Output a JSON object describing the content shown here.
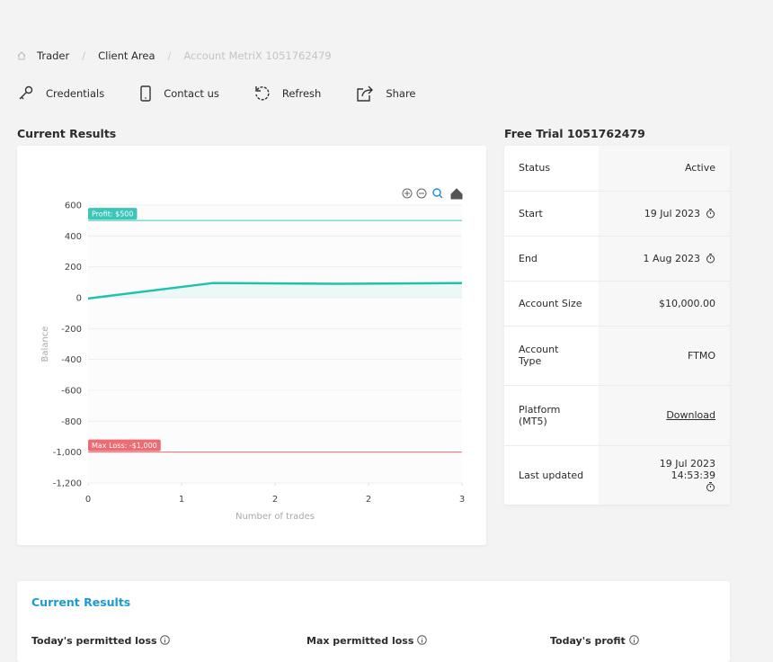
{
  "breadcrumb": [
    "Trader",
    "Client Area",
    "Account MetriX 1051762479"
  ],
  "toolbar": [
    "Credentials",
    "Contact us",
    "Refresh",
    "Share"
  ],
  "results_title": "Current Results",
  "chart_data": {
    "type": "line",
    "x_label": "Number of trades",
    "y_label": "Balance",
    "x": [
      0,
      1,
      2,
      3
    ],
    "series": [
      {
        "name": "Balance",
        "color": "#1fc2ae",
        "values": [
          -5,
          95,
          90,
          95
        ]
      }
    ],
    "xlim": [
      0,
      3
    ],
    "xticks": [
      0,
      {
        "value": 0.75,
        "label": "1"
      },
      {
        "value": 1.5,
        "label": "2"
      },
      {
        "value": 2.25,
        "label": "2"
      },
      3
    ],
    "ylim": [
      -1200,
      600
    ],
    "yticks": [
      {
        "value": -1200,
        "label": "-1,200"
      },
      {
        "value": -1000,
        "label": "-1,000"
      },
      -800,
      -600,
      -400,
      -200,
      0,
      200,
      400,
      600
    ],
    "grid": true,
    "reference_lines": [
      {
        "value": 500,
        "label": "Profit: $500",
        "color": "#3cc6b8"
      },
      {
        "value": -1000,
        "label": "Max Loss: -$1,000",
        "color": "#ef6b73"
      }
    ]
  },
  "account": {
    "title": "Free Trial 1051762479",
    "rows": [
      [
        "Status",
        "Active"
      ],
      [
        "Start",
        "19 Jul 2023"
      ],
      [
        "End",
        "1 Aug 2023"
      ],
      [
        "Account Size",
        "$10,000.00"
      ],
      [
        "Account Type",
        "FTMO"
      ],
      [
        "Platform (MT5)",
        "Download"
      ],
      [
        "Last updated",
        "19 Jul 2023 14:53:39"
      ]
    ]
  },
  "metrics": {
    "title": "Current Results",
    "labels": [
      "Today's permitted loss",
      "Max permitted loss",
      "Today's profit"
    ]
  }
}
